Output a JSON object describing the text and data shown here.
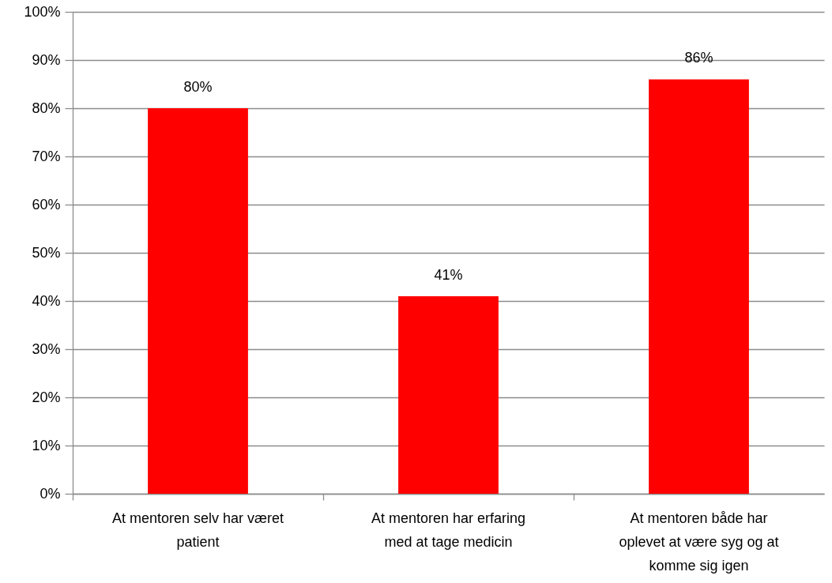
{
  "chart_data": {
    "type": "bar",
    "categories": [
      "At mentoren selv har været patient",
      "At mentoren har erfaring med at tage medicin",
      "At mentoren både har oplevet at være syg og at komme sig igen"
    ],
    "values": [
      80,
      41,
      86
    ],
    "color": "#ff0000",
    "value_labels": [
      "80%",
      "41%",
      "86%"
    ],
    "ylim": [
      0,
      100
    ],
    "yticks": [
      {
        "value": 0,
        "label": "0%"
      },
      {
        "value": 10,
        "label": "10%"
      },
      {
        "value": 20,
        "label": "20%"
      },
      {
        "value": 30,
        "label": "30%"
      },
      {
        "value": 40,
        "label": "40%"
      },
      {
        "value": 50,
        "label": "50%"
      },
      {
        "value": 60,
        "label": "60%"
      },
      {
        "value": 70,
        "label": "70%"
      },
      {
        "value": 80,
        "label": "80%"
      },
      {
        "value": 90,
        "label": "90%"
      },
      {
        "value": 100,
        "label": "100%"
      }
    ],
    "grid": "y"
  }
}
